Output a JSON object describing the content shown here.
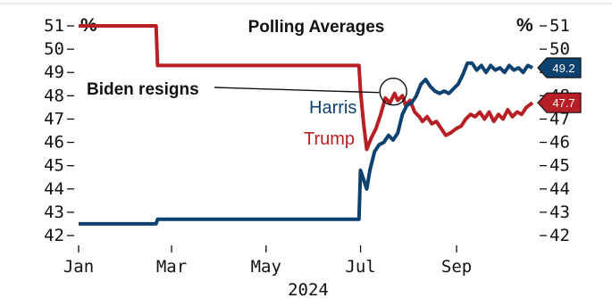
{
  "chart_data": {
    "type": "line",
    "title": "Polling Averages",
    "y_unit": "%",
    "xlabel": "2024",
    "ylabel": "",
    "ylim": [
      42,
      51
    ],
    "yticks": [
      42,
      43,
      44,
      45,
      46,
      47,
      48,
      49,
      50,
      51
    ],
    "x_tick_labels": [
      "Jan",
      "Mar",
      "May",
      "Jul",
      "Sep"
    ],
    "x_tick_dates": [
      "2024-01-01",
      "2024-03-01",
      "2024-05-01",
      "2024-07-01",
      "2024-09-01"
    ],
    "x_range": [
      "2024-01-01",
      "2024-10-20"
    ],
    "grid": false,
    "annotation": {
      "text": "Biden resigns",
      "date": "2024-07-21",
      "value": 48.1
    },
    "series": [
      {
        "name": "Trump",
        "color": "#b81f25",
        "end_label": "47.7",
        "points": [
          [
            "2024-01-01",
            51.0
          ],
          [
            "2024-02-20",
            51.0
          ],
          [
            "2024-02-21",
            49.3
          ],
          [
            "2024-06-30",
            49.3
          ],
          [
            "2024-07-01",
            48.2
          ],
          [
            "2024-07-03",
            46.8
          ],
          [
            "2024-07-05",
            45.7
          ],
          [
            "2024-07-08",
            46.2
          ],
          [
            "2024-07-11",
            46.6
          ],
          [
            "2024-07-14",
            47.2
          ],
          [
            "2024-07-17",
            47.9
          ],
          [
            "2024-07-20",
            47.7
          ],
          [
            "2024-07-23",
            48.1
          ],
          [
            "2024-07-25",
            47.8
          ],
          [
            "2024-07-28",
            48.0
          ],
          [
            "2024-07-30",
            47.6
          ],
          [
            "2024-08-02",
            47.8
          ],
          [
            "2024-08-05",
            47.3
          ],
          [
            "2024-08-08",
            47.1
          ],
          [
            "2024-08-10",
            46.9
          ],
          [
            "2024-08-13",
            47.1
          ],
          [
            "2024-08-16",
            46.8
          ],
          [
            "2024-08-19",
            46.9
          ],
          [
            "2024-08-22",
            46.6
          ],
          [
            "2024-08-25",
            46.3
          ],
          [
            "2024-08-28",
            46.4
          ],
          [
            "2024-09-01",
            46.6
          ],
          [
            "2024-09-04",
            46.7
          ],
          [
            "2024-09-07",
            47.0
          ],
          [
            "2024-09-10",
            47.2
          ],
          [
            "2024-09-13",
            47.1
          ],
          [
            "2024-09-16",
            47.3
          ],
          [
            "2024-09-19",
            47.0
          ],
          [
            "2024-09-22",
            47.3
          ],
          [
            "2024-09-25",
            46.9
          ],
          [
            "2024-09-28",
            47.2
          ],
          [
            "2024-10-01",
            47.0
          ],
          [
            "2024-10-04",
            47.4
          ],
          [
            "2024-10-07",
            47.1
          ],
          [
            "2024-10-10",
            47.3
          ],
          [
            "2024-10-13",
            47.2
          ],
          [
            "2024-10-16",
            47.5
          ],
          [
            "2024-10-20",
            47.7
          ]
        ]
      },
      {
        "name": "Harris",
        "color": "#0d4170",
        "end_label": "49.2",
        "points": [
          [
            "2024-01-01",
            42.5
          ],
          [
            "2024-02-20",
            42.5
          ],
          [
            "2024-02-21",
            42.7
          ],
          [
            "2024-06-30",
            42.7
          ],
          [
            "2024-07-01",
            44.8
          ],
          [
            "2024-07-03",
            44.4
          ],
          [
            "2024-07-05",
            44.0
          ],
          [
            "2024-07-07",
            44.8
          ],
          [
            "2024-07-10",
            45.6
          ],
          [
            "2024-07-13",
            45.9
          ],
          [
            "2024-07-16",
            46.0
          ],
          [
            "2024-07-19",
            46.3
          ],
          [
            "2024-07-22",
            46.1
          ],
          [
            "2024-07-25",
            46.4
          ],
          [
            "2024-07-28",
            47.2
          ],
          [
            "2024-07-31",
            47.6
          ],
          [
            "2024-08-03",
            47.7
          ],
          [
            "2024-08-06",
            48.0
          ],
          [
            "2024-08-09",
            48.5
          ],
          [
            "2024-08-12",
            48.7
          ],
          [
            "2024-08-15",
            48.4
          ],
          [
            "2024-08-18",
            48.2
          ],
          [
            "2024-08-21",
            48.1
          ],
          [
            "2024-08-24",
            48.2
          ],
          [
            "2024-08-27",
            48.1
          ],
          [
            "2024-08-30",
            48.3
          ],
          [
            "2024-09-02",
            48.5
          ],
          [
            "2024-09-05",
            48.9
          ],
          [
            "2024-09-08",
            49.4
          ],
          [
            "2024-09-11",
            49.4
          ],
          [
            "2024-09-14",
            49.1
          ],
          [
            "2024-09-17",
            49.3
          ],
          [
            "2024-09-20",
            49.0
          ],
          [
            "2024-09-23",
            49.3
          ],
          [
            "2024-09-26",
            49.1
          ],
          [
            "2024-09-29",
            49.2
          ],
          [
            "2024-10-02",
            49.0
          ],
          [
            "2024-10-05",
            49.3
          ],
          [
            "2024-10-08",
            49.1
          ],
          [
            "2024-10-11",
            49.2
          ],
          [
            "2024-10-14",
            49.0
          ],
          [
            "2024-10-17",
            49.3
          ],
          [
            "2024-10-20",
            49.2
          ]
        ]
      }
    ]
  }
}
